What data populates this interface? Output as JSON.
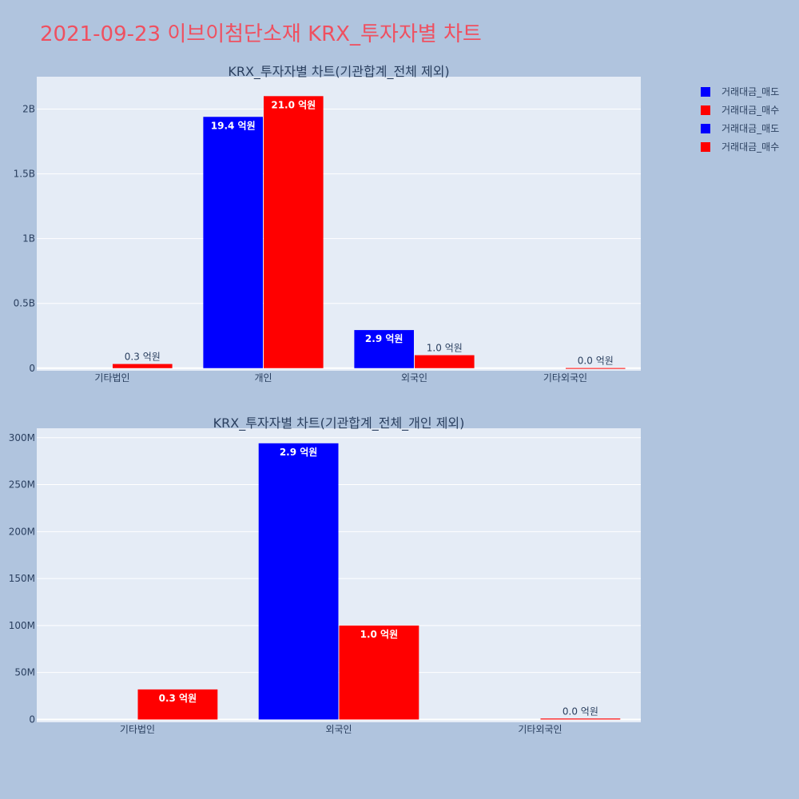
{
  "page_title": "2021-09-23 이브이첨단소재 KRX_투자자별 차트",
  "colors": {
    "sell": "#0000ff",
    "buy": "#ff0000",
    "plot_bg": "#e5ecf6",
    "page_bg": "#b0c4de"
  },
  "legend": [
    "거래대금_매도",
    "거래대금_매수",
    "거래대금_매도",
    "거래대금_매수"
  ],
  "chart_data": [
    {
      "type": "bar",
      "title": "KRX_투자자별 차트(기관합계_전체 제외)",
      "categories": [
        "기타법인",
        "개인",
        "외국인",
        "기타외국인"
      ],
      "series": [
        {
          "name": "거래대금_매도",
          "values": [
            0,
            1940000000,
            294000000,
            0
          ],
          "labels": [
            "",
            "19.4 억원",
            "2.9 억원",
            ""
          ]
        },
        {
          "name": "거래대금_매수",
          "values": [
            32000000,
            2100000000,
            100000000,
            1000000
          ],
          "labels": [
            "0.3 억원",
            "21.0 억원",
            "1.0 억원",
            "0.0 억원"
          ]
        }
      ],
      "ylim": [
        -20000000,
        2250000000
      ],
      "yticks": [
        0,
        500000000,
        1000000000,
        1500000000,
        2000000000
      ],
      "yticklabels": [
        "0",
        "0.5B",
        "1B",
        "1.5B",
        "2B"
      ],
      "xlabel": "",
      "ylabel": "",
      "grid": true
    },
    {
      "type": "bar",
      "title": "KRX_투자자별 차트(기관합계_전체_개인 제외)",
      "categories": [
        "기타법인",
        "외국인",
        "기타외국인"
      ],
      "series": [
        {
          "name": "거래대금_매도",
          "values": [
            0,
            294000000,
            0
          ],
          "labels": [
            "",
            "2.9 억원",
            ""
          ]
        },
        {
          "name": "거래대금_매수",
          "values": [
            32000000,
            100000000,
            1000000
          ],
          "labels": [
            "0.3 억원",
            "1.0 억원",
            "0.0 억원"
          ]
        }
      ],
      "ylim": [
        -3000000,
        310000000
      ],
      "yticks": [
        0,
        50000000,
        100000000,
        150000000,
        200000000,
        250000000,
        300000000
      ],
      "yticklabels": [
        "0",
        "50M",
        "100M",
        "150M",
        "200M",
        "250M",
        "300M"
      ],
      "xlabel": "",
      "ylabel": "",
      "grid": true
    }
  ]
}
